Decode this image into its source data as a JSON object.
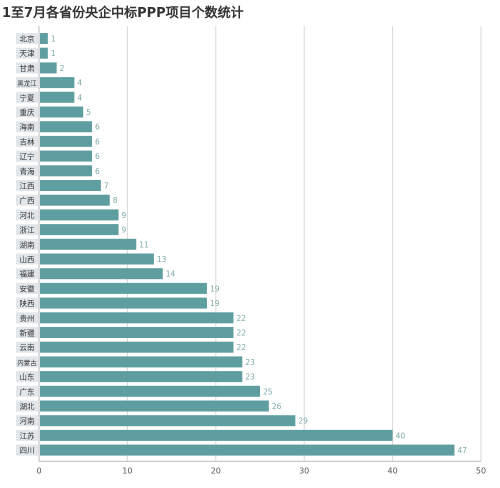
{
  "chart_data": {
    "type": "bar",
    "orientation": "horizontal",
    "title": "1至7月各省份央企中标PPP项目个数统计",
    "categories": [
      "北京",
      "天津",
      "甘肃",
      "黑龙江",
      "宁夏",
      "重庆",
      "海南",
      "吉林",
      "辽宁",
      "青海",
      "江西",
      "广西",
      "河北",
      "浙江",
      "湖南",
      "山西",
      "福建",
      "安徽",
      "陕西",
      "贵州",
      "新疆",
      "云南",
      "内蒙古",
      "山东",
      "广东",
      "湖北",
      "河南",
      "江苏",
      "四川"
    ],
    "values": [
      1,
      1,
      2,
      4,
      4,
      5,
      6,
      6,
      6,
      6,
      7,
      8,
      9,
      9,
      11,
      13,
      14,
      19,
      19,
      22,
      22,
      22,
      23,
      23,
      25,
      26,
      29,
      40,
      47
    ],
    "x_ticks": [
      0,
      10,
      20,
      30,
      40,
      50
    ],
    "xlim": [
      0,
      50
    ],
    "xlabel": "",
    "ylabel": "",
    "grid": true,
    "bar_color": "#5f9ea0",
    "grid_color": "#d9d9d9",
    "label_color": "#7fa8a8",
    "category_box_color": "#e0e6ea",
    "axis_text_color": "#555555"
  }
}
